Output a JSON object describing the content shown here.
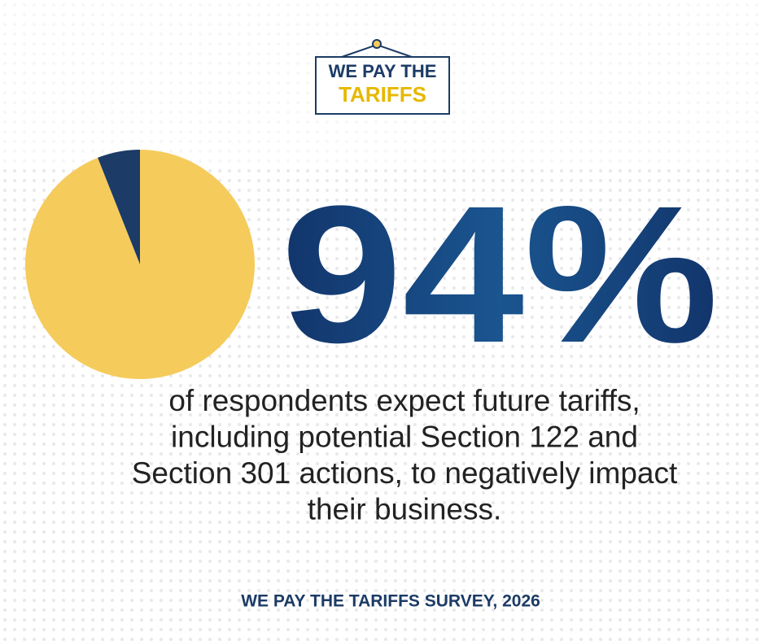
{
  "logo": {
    "line1": "WE PAY THE",
    "line2": "TARIFFS"
  },
  "chart_data": {
    "type": "pie",
    "values": [
      94,
      6
    ],
    "value_labels": [
      "94%",
      null
    ],
    "colors": [
      "#f5cb5c",
      "#1c3b66"
    ],
    "caption": [
      "of respondents expect future tariffs,",
      "including potential Section 122 and",
      "Section 301 actions, to negatively impact",
      "their business."
    ],
    "source": "WE PAY THE TARIFFS SURVEY, 2026"
  }
}
